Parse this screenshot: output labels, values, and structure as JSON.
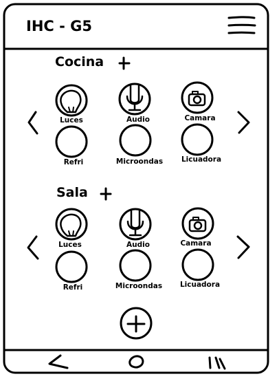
{
  "header": {
    "title": "IHC - G5",
    "menu_icon": "hamburger-menu-icon"
  },
  "rooms": [
    {
      "name": "Cocina",
      "devices": [
        {
          "label": "Luces",
          "icon": "lightbulb-icon"
        },
        {
          "label": "Audio",
          "icon": "microphone-icon"
        },
        {
          "label": "Camara",
          "icon": "camera-icon"
        },
        {
          "label": "Refri",
          "icon": ""
        },
        {
          "label": "Microondas",
          "icon": ""
        },
        {
          "label": "Licuadora",
          "icon": ""
        }
      ]
    },
    {
      "name": "Sala",
      "devices": [
        {
          "label": "Luces",
          "icon": "lightbulb-icon"
        },
        {
          "label": "Audio",
          "icon": "microphone-icon"
        },
        {
          "label": "Camara",
          "icon": "camera-icon"
        },
        {
          "label": "Refri",
          "icon": ""
        },
        {
          "label": "Microondas",
          "icon": ""
        },
        {
          "label": "Licuadora",
          "icon": ""
        }
      ]
    }
  ],
  "nav_icons": [
    "back-triangle-icon",
    "home-circle-icon",
    "recent-apps-icon"
  ]
}
